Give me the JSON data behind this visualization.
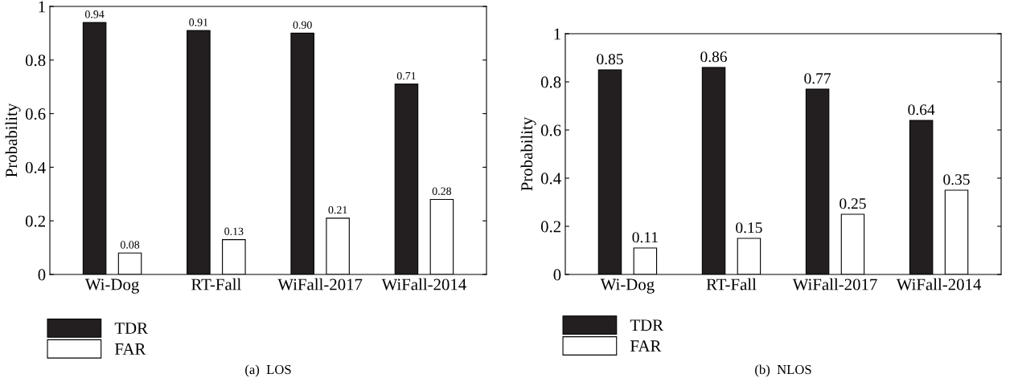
{
  "chart_data": [
    {
      "type": "bar",
      "categories": [
        "Wi-Dog",
        "RT-Fall",
        "WiFall-2017",
        "WiFall-2014"
      ],
      "ylabel": "Probability",
      "ylim": [
        0,
        1
      ],
      "yticks": [
        0,
        0.2,
        0.4,
        0.6,
        0.8,
        1
      ],
      "grid": false,
      "legend": "bottom left",
      "annotations": [
        "(a)  LOS"
      ],
      "series": [
        {
          "name": "TDR",
          "color": "#231f20",
          "values": [
            0.94,
            0.91,
            0.9,
            0.71
          ],
          "value_labels": [
            "0.94",
            "0.91",
            "0.90",
            "0.71"
          ]
        },
        {
          "name": "FAR",
          "color": "#ffffff",
          "values": [
            0.08,
            0.13,
            0.21,
            0.28
          ],
          "value_labels": [
            "0.08",
            "0.13",
            "0.21",
            "0.28"
          ]
        }
      ]
    },
    {
      "type": "bar",
      "categories": [
        "Wi-Dog",
        "RT-Fall",
        "WiFall-2017",
        "WiFall-2014"
      ],
      "ylabel": "Probability",
      "ylim": [
        0,
        1
      ],
      "yticks": [
        0,
        0.2,
        0.4,
        0.6,
        0.8,
        1
      ],
      "grid": false,
      "legend": "bottom left",
      "annotations": [
        "(b)  NLOS"
      ],
      "series": [
        {
          "name": "TDR",
          "color": "#231f20",
          "values": [
            0.85,
            0.86,
            0.77,
            0.64
          ],
          "value_labels": [
            "0.85",
            "0.86",
            "0.77",
            "0.64"
          ]
        },
        {
          "name": "FAR",
          "color": "#ffffff",
          "values": [
            0.11,
            0.15,
            0.25,
            0.35
          ],
          "value_labels": [
            "0.11",
            "0.15",
            "0.25",
            "0.35"
          ]
        }
      ]
    }
  ]
}
